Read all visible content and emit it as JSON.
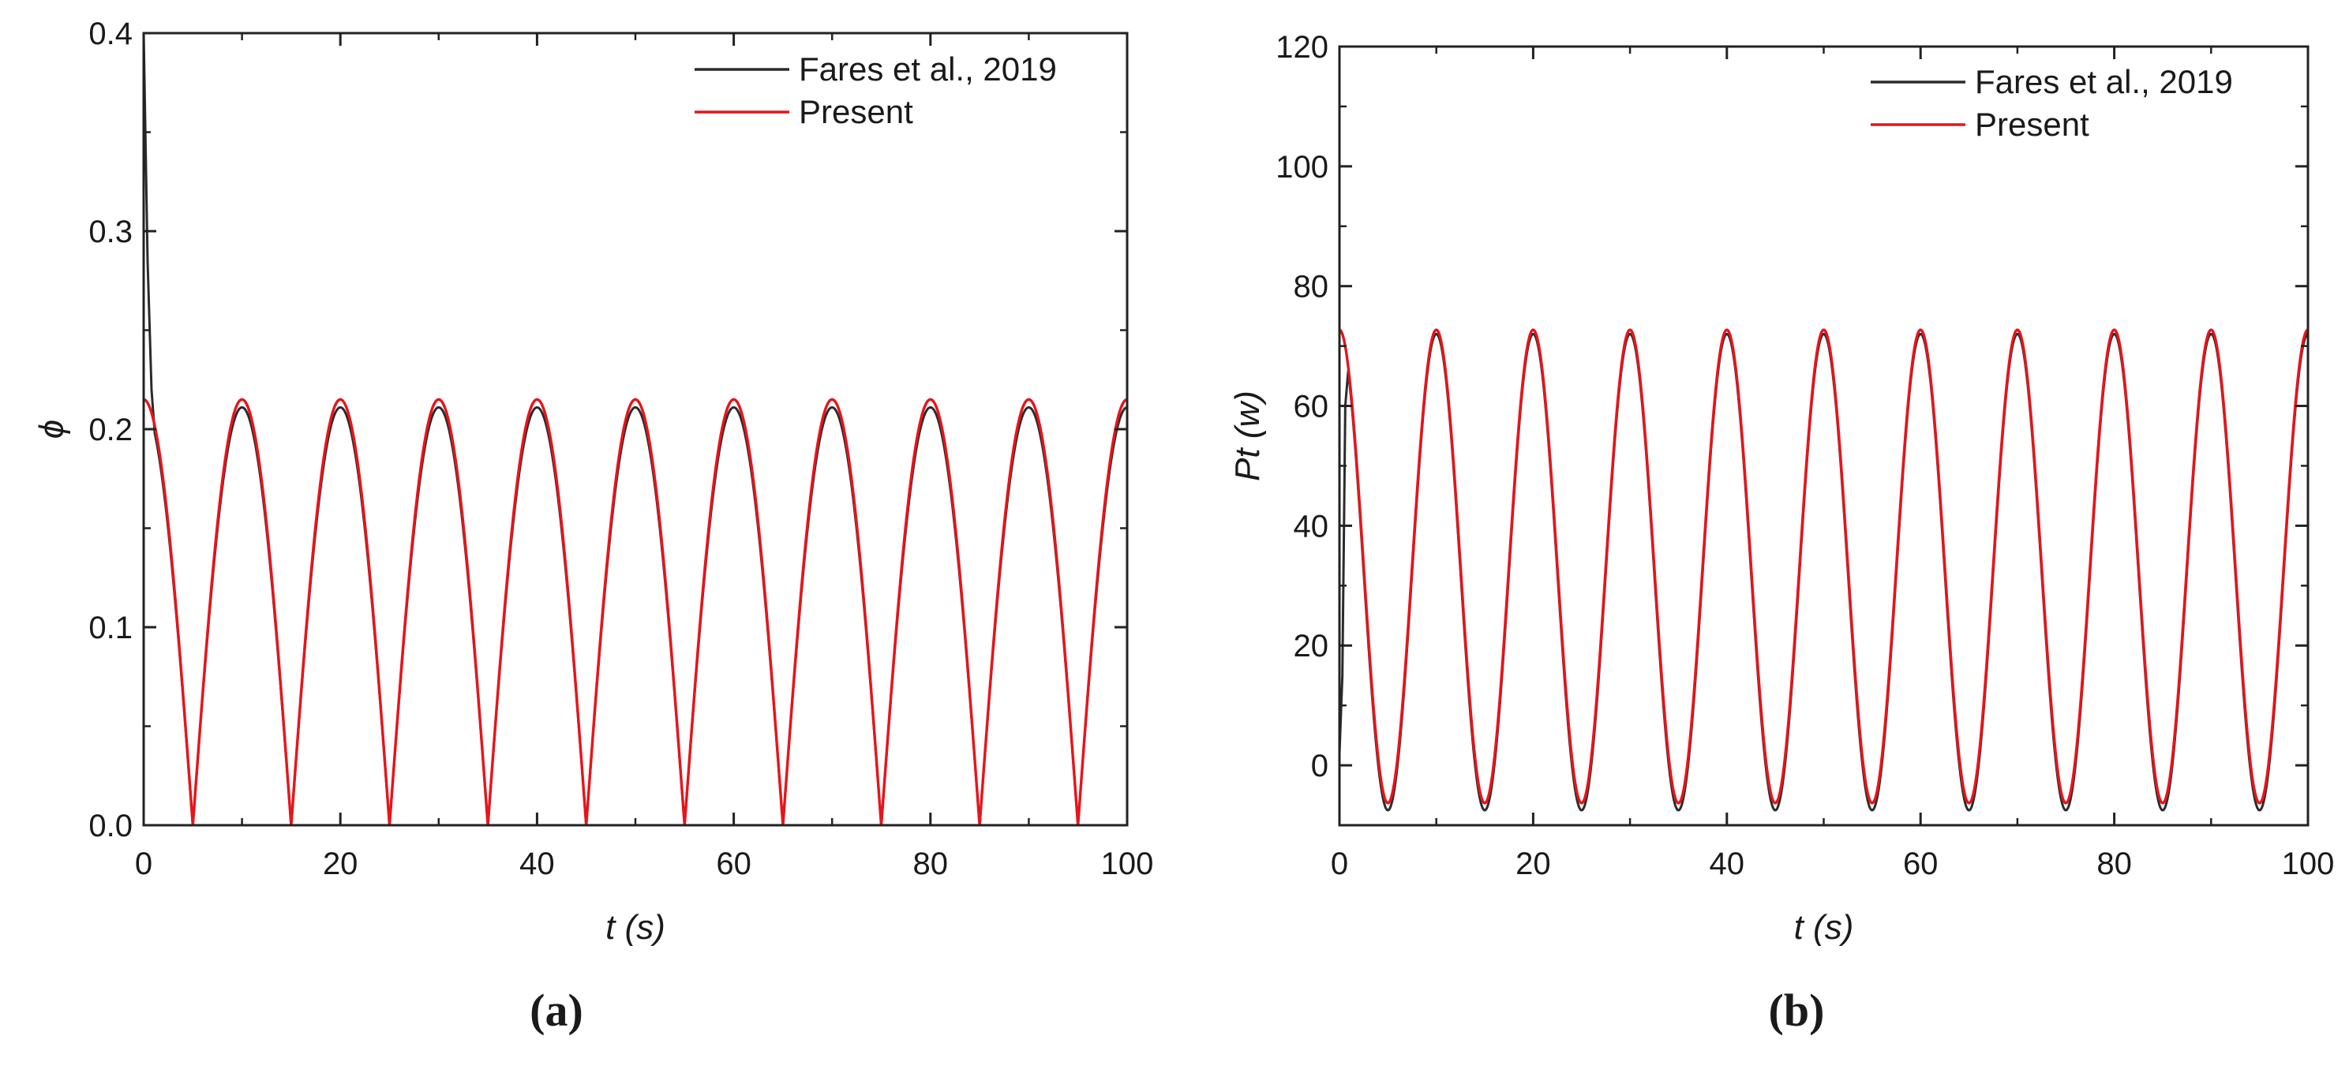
{
  "chart_data": [
    {
      "type": "line",
      "panel_label": "(a)",
      "xlabel": "t (s)",
      "ylabel": "ϕ",
      "xlim": [
        0,
        100
      ],
      "ylim": [
        0,
        0.4
      ],
      "xticks": [
        0,
        20,
        40,
        60,
        80,
        100
      ],
      "yticks": [
        0.0,
        0.1,
        0.2,
        0.3,
        0.4
      ],
      "ytick_labels": [
        "0.0",
        "0.1",
        "0.2",
        "0.3",
        "0.4"
      ],
      "legend_placement": "top-right",
      "grid": false,
      "series": [
        {
          "name": "Fares et al., 2019",
          "color": "#2b2b2b",
          "model": {
            "form": "abs-cos",
            "amplitude": 0.211,
            "period": 10,
            "offset": 0.0
          },
          "initial_transient": [
            [
              0,
              0.4
            ],
            [
              0.4,
              0.285
            ],
            [
              0.8,
              0.22
            ]
          ]
        },
        {
          "name": "Present",
          "color": "#e8141b",
          "model": {
            "form": "abs-cos",
            "amplitude": 0.215,
            "period": 10,
            "offset": 0.0
          }
        }
      ]
    },
    {
      "type": "line",
      "panel_label": "(b)",
      "xlabel": "t (s)",
      "ylabel": "Pt (w)",
      "xlim": [
        0,
        100
      ],
      "ylim": [
        -10,
        120
      ],
      "xticks": [
        0,
        20,
        40,
        60,
        80,
        100
      ],
      "yticks": [
        0,
        20,
        40,
        60,
        80,
        100,
        120
      ],
      "ytick_labels": [
        "0",
        "20",
        "40",
        "60",
        "80",
        "100",
        "120"
      ],
      "legend_placement": "top-right",
      "grid": false,
      "series": [
        {
          "name": "Fares et al., 2019",
          "color": "#2b2b2b",
          "model": {
            "form": "cos-squared",
            "amplitude": 79.5,
            "period": 10,
            "offset": -7.5
          },
          "initial_transient": [
            [
              0,
              2
            ],
            [
              0.3,
              15
            ],
            [
              0.6,
              60
            ]
          ]
        },
        {
          "name": "Present",
          "color": "#e8141b",
          "model": {
            "form": "cos-squared",
            "amplitude": 79.0,
            "period": 10,
            "offset": -6.3
          }
        }
      ]
    }
  ]
}
